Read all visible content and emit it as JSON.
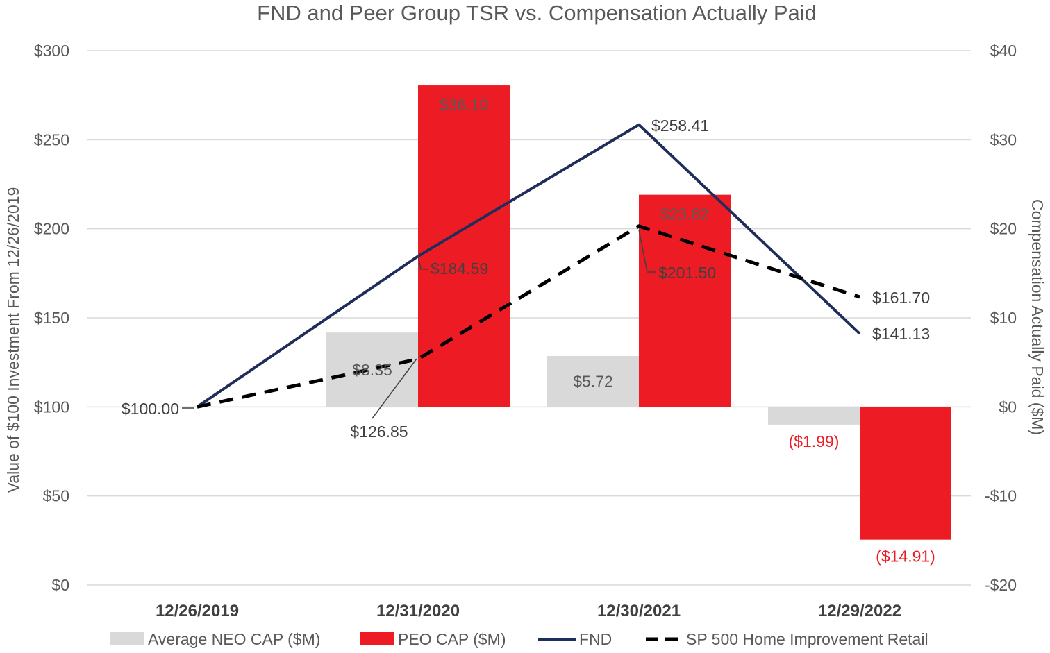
{
  "chart_data": {
    "type": "bar",
    "title": "FND and Peer Group TSR vs. Compensation Actually Paid",
    "categories": [
      "12/26/2019",
      "12/31/2020",
      "12/30/2021",
      "12/29/2022"
    ],
    "ylabel": "Value of $100 Investment From 12/26/2019",
    "y2label": "Compensation Actually Paid ($M)",
    "ylim": [
      0,
      300
    ],
    "y2lim": [
      -20,
      40
    ],
    "yticks": [
      {
        "value": 300,
        "label": "$300"
      },
      {
        "value": 250,
        "label": "$250"
      },
      {
        "value": 200,
        "label": "$200"
      },
      {
        "value": 150,
        "label": "$150"
      },
      {
        "value": 100,
        "label": "$100"
      },
      {
        "value": 50,
        "label": "$50"
      },
      {
        "value": 0,
        "label": "$0"
      }
    ],
    "y2ticks": [
      {
        "value": 40,
        "label": "$40"
      },
      {
        "value": 30,
        "label": "$30"
      },
      {
        "value": 20,
        "label": "$20"
      },
      {
        "value": 10,
        "label": "$10"
      },
      {
        "value": 0,
        "label": "$0"
      },
      {
        "value": -10,
        "label": "-$10"
      },
      {
        "value": -20,
        "label": "-$20"
      }
    ],
    "grid": true,
    "legend_position": "bottom",
    "bar_series": [
      {
        "name": "Average NEO CAP ($M)",
        "color": "#d9d9d9",
        "values": [
          null,
          8.35,
          5.72,
          -1.99
        ],
        "labels": [
          null,
          "$8.35",
          "$5.72",
          "($1.99)"
        ]
      },
      {
        "name": "PEO CAP ($M)",
        "color": "#ed1c24",
        "values": [
          null,
          36.1,
          23.82,
          -14.91
        ],
        "labels": [
          null,
          "$36.10",
          "$23.82",
          "($14.91)"
        ]
      }
    ],
    "line_series": [
      {
        "name": "FND",
        "color": "#1f2d5a",
        "style": "solid",
        "values": [
          100.0,
          184.59,
          258.41,
          141.13
        ],
        "labels": [
          "$100.00",
          "$184.59",
          "$258.41",
          "$141.13"
        ]
      },
      {
        "name": "SP 500 Home Improvement Retail",
        "color": "#000000",
        "style": "dashed",
        "values": [
          100.0,
          126.85,
          201.5,
          161.7
        ],
        "labels": [
          "$100.00",
          "$126.85",
          "$201.50",
          "$161.70"
        ]
      }
    ],
    "negative_label_color": "#ed1c24"
  }
}
